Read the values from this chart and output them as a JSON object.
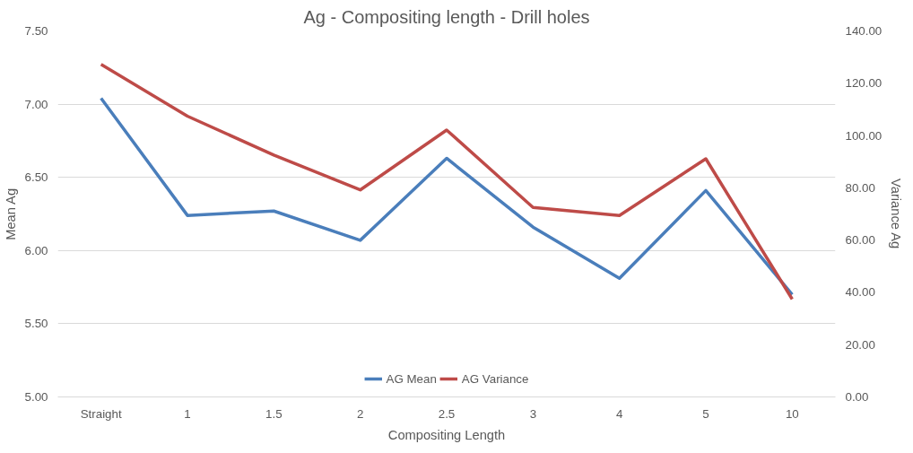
{
  "chart_data": {
    "type": "line",
    "title": "Ag - Compositing length - Drill holes",
    "xlabel": "Compositing Length",
    "ylabel": "Mean Ag",
    "y2label": "Variance Ag",
    "categories": [
      "Straight",
      "1",
      "1.5",
      "2",
      "2.5",
      "3",
      "4",
      "5",
      "10"
    ],
    "series": [
      {
        "name": "AG Mean",
        "color": "#4a7ebb",
        "values": [
          7.04,
          6.24,
          6.27,
          6.07,
          6.63,
          6.16,
          5.81,
          6.41,
          5.7
        ]
      },
      {
        "name": "AG Variance",
        "color": "#be4b48",
        "axis": "y2",
        "values": [
          127.2,
          107.4,
          92.5,
          79.2,
          102.1,
          72.5,
          69.4,
          91.1,
          37.4
        ]
      }
    ],
    "ylim": [
      5.0,
      7.5
    ],
    "yticks": [
      {
        "value": 5.0,
        "label": "5.00"
      },
      {
        "value": 5.5,
        "label": "5.50"
      },
      {
        "value": 6.0,
        "label": "6.00"
      },
      {
        "value": 6.5,
        "label": "6.50"
      },
      {
        "value": 7.0,
        "label": "7.00"
      },
      {
        "value": 7.5,
        "label": "7.50"
      }
    ],
    "y2lim": [
      0,
      140
    ],
    "y2ticks": [
      {
        "value": 0,
        "label": "0.00"
      },
      {
        "value": 20,
        "label": "20.00"
      },
      {
        "value": 40,
        "label": "40.00"
      },
      {
        "value": 60,
        "label": "60.00"
      },
      {
        "value": 80,
        "label": "80.00"
      },
      {
        "value": 100,
        "label": "100.00"
      },
      {
        "value": 120,
        "label": "120.00"
      },
      {
        "value": 140,
        "label": "140.00"
      }
    ],
    "grid": "y",
    "legend": "bottom",
    "marker": "none",
    "line_style": "solid"
  }
}
